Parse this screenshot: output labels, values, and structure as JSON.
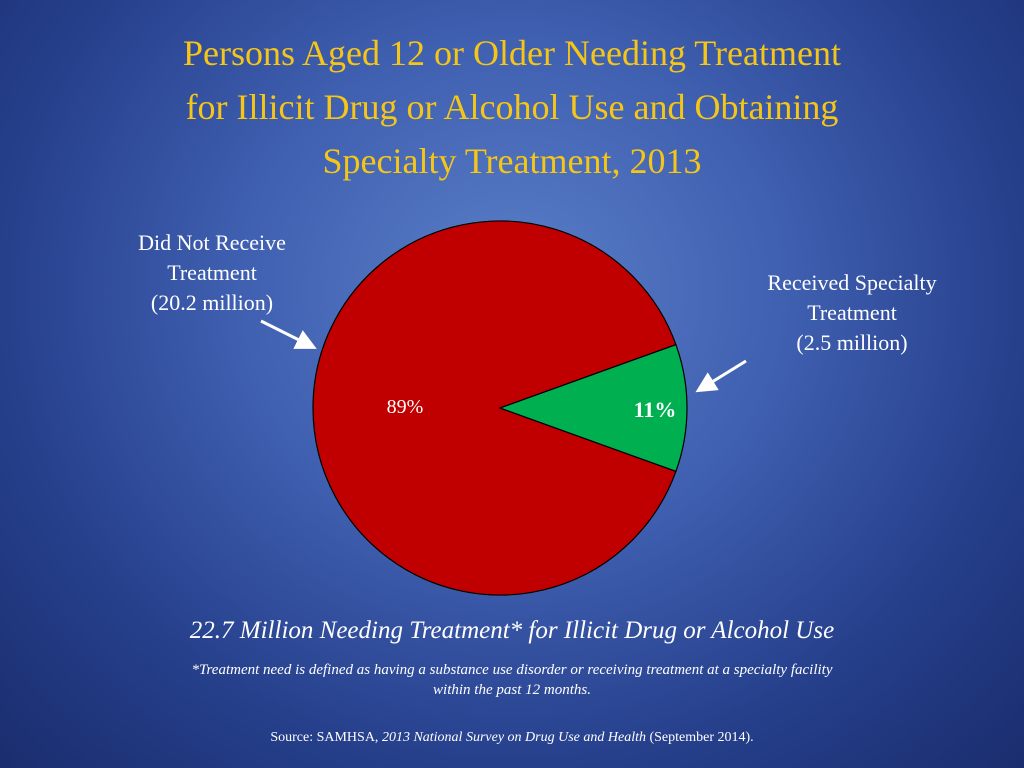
{
  "title": {
    "line1": "Persons Aged 12 or Older Needing Treatment",
    "line2": "for Illicit Drug or Alcohol Use and Obtaining",
    "line3": "Specialty Treatment, 2013"
  },
  "labels": {
    "not_received": {
      "line1": "Did Not Receive",
      "line2": "Treatment",
      "line3": "(20.2 million)"
    },
    "received": {
      "line1": "Received Specialty",
      "line2": "Treatment",
      "line3": "(2.5 million)"
    }
  },
  "summary": "22.7 Million Needing Treatment* for Illicit Drug or Alcohol Use",
  "footnote": {
    "line1": "*Treatment need is defined as having a substance use disorder or receiving treatment at a specialty facility",
    "line2": "within the past 12 months."
  },
  "source": {
    "prefix": "Source:  SAMHSA, ",
    "publication": "2013 National Survey on Drug Use and Health",
    "suffix": " (September 2014)."
  },
  "colors": {
    "title": "#f5c518",
    "not_received_slice": "#c00000",
    "received_slice": "#00b050",
    "outline": "#000000",
    "arrow": "#ffffff"
  },
  "chart_data": {
    "type": "pie",
    "slices": [
      {
        "label": "Did Not Receive Treatment",
        "value": 89,
        "value_label": "89%",
        "amount": "20.2 million",
        "color": "#c00000"
      },
      {
        "label": "Received Specialty Treatment",
        "value": 11,
        "value_label": "11%",
        "amount": "2.5 million",
        "color": "#00b050"
      }
    ],
    "start_angle_deg": 0,
    "direction": "clockwise",
    "legend": "none"
  }
}
